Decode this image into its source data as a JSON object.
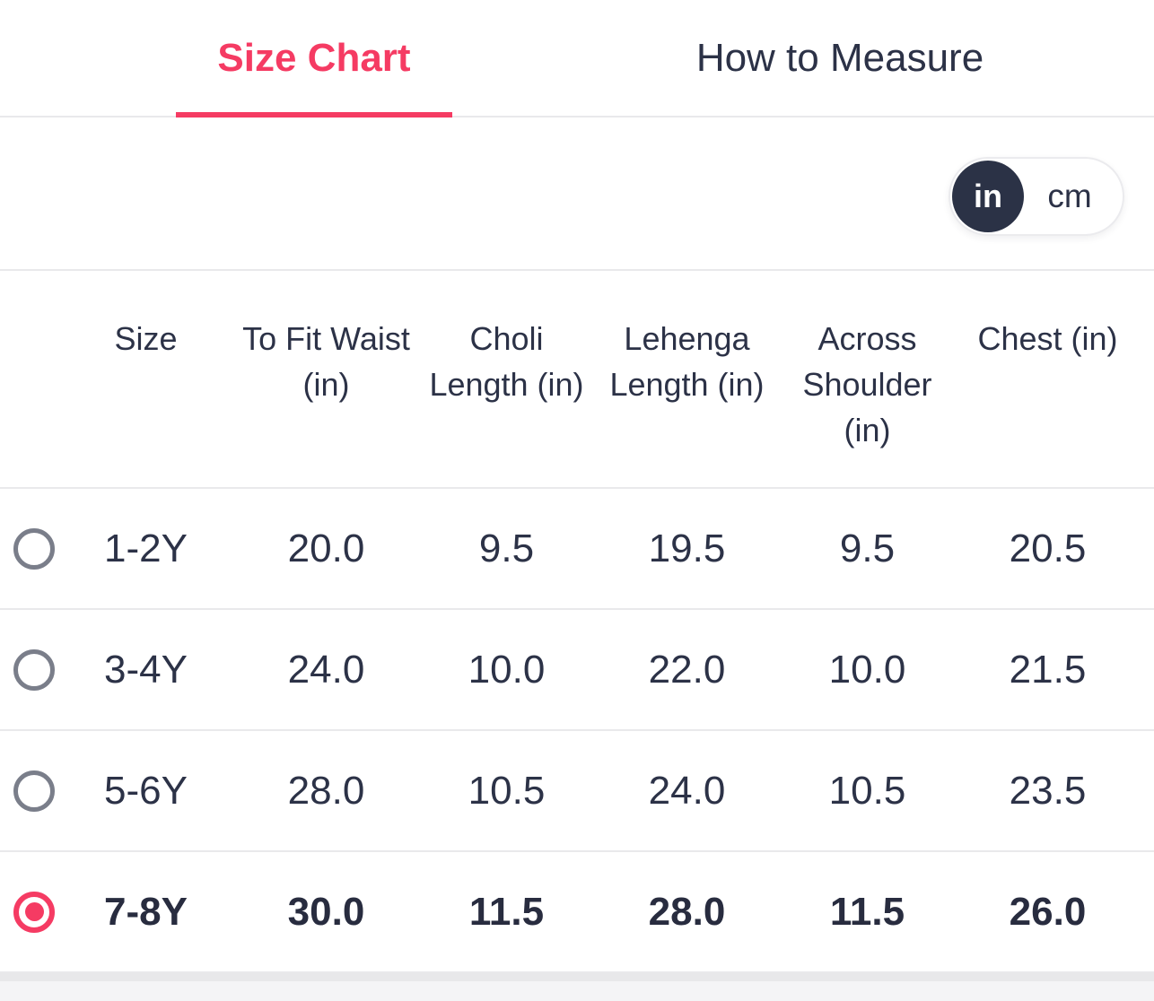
{
  "tabs": {
    "size_chart": {
      "label": "Size Chart",
      "active": true
    },
    "how_to_measure": {
      "label": "How to Measure",
      "active": false
    }
  },
  "unit_toggle": {
    "selected": "in",
    "options": {
      "in": "in",
      "cm": "cm"
    }
  },
  "colors": {
    "accent_pink": "#f53b63",
    "text_dark_navy": "#2c3247",
    "toggle_circle": "#2b3246",
    "radio_unselected_gray": "#7a7e8a",
    "separator_gray": "#e9e9eb"
  },
  "table": {
    "columns": [
      "Size",
      "To Fit Waist (in)",
      "Choli Length (in)",
      "Lehenga Length (in)",
      "Across Shoulder (in)",
      "Chest (in)"
    ],
    "rows": [
      {
        "size": "1-2Y",
        "values": [
          "20.0",
          "9.5",
          "19.5",
          "9.5",
          "20.5"
        ],
        "selected": false
      },
      {
        "size": "3-4Y",
        "values": [
          "24.0",
          "10.0",
          "22.0",
          "10.0",
          "21.5"
        ],
        "selected": false
      },
      {
        "size": "5-6Y",
        "values": [
          "28.0",
          "10.5",
          "24.0",
          "10.5",
          "23.5"
        ],
        "selected": false
      },
      {
        "size": "7-8Y",
        "values": [
          "30.0",
          "11.5",
          "28.0",
          "11.5",
          "26.0"
        ],
        "selected": true
      }
    ]
  }
}
